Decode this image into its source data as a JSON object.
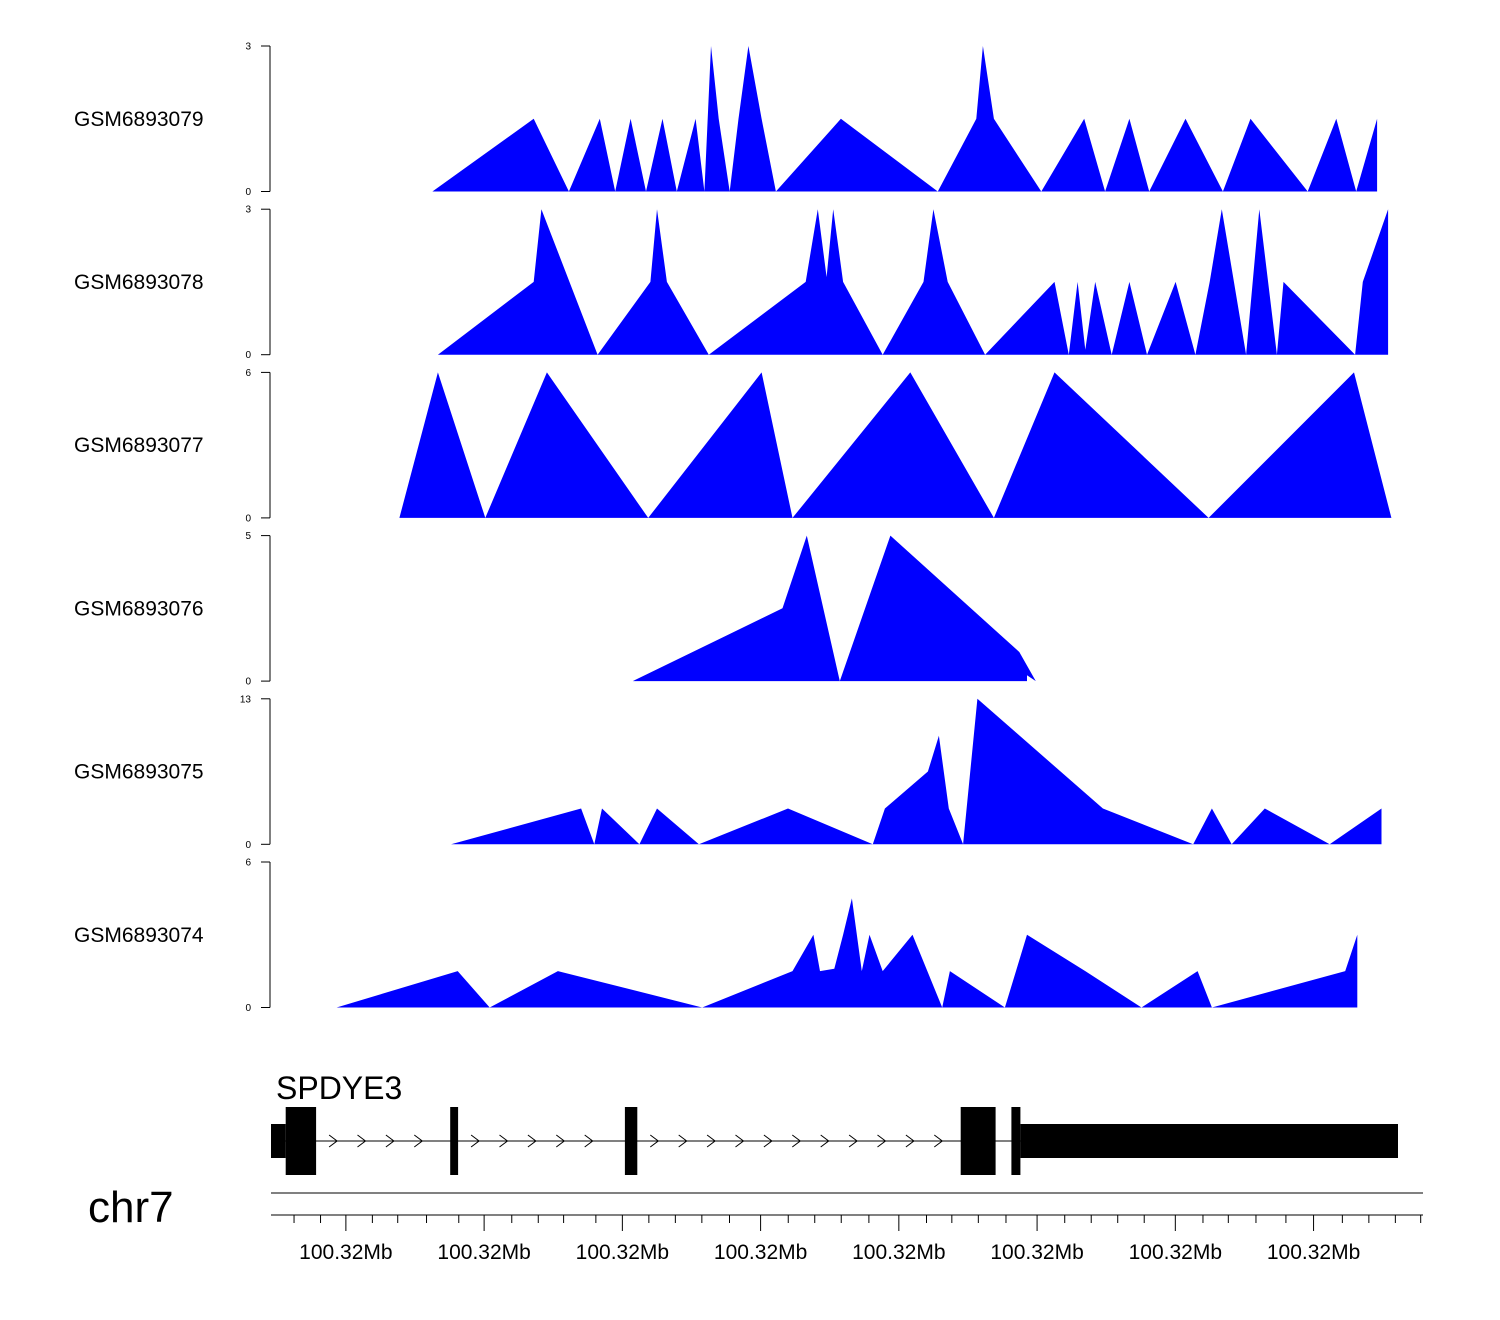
{
  "chart_data": {
    "type": "area",
    "title": "",
    "colors": {
      "fill": "#0000ff",
      "axis": "#000000",
      "gene": "#000000"
    },
    "x_range": [
      0,
      100
    ],
    "tracks": [
      {
        "name": "GSM6893079",
        "ymax": 3,
        "ylim": [
          0,
          3
        ],
        "x": [
          12.3,
          21.5,
          24.7,
          27.5,
          28.9,
          30.3,
          31.7,
          33.2,
          34.5,
          36.2,
          37,
          37.6,
          38.3,
          39.3,
          40.1,
          41,
          42.2,
          43.5,
          49.4,
          58.2,
          61.7,
          62.3,
          63.3,
          67.6,
          71.5,
          73.4,
          75.6,
          77.4,
          80.7,
          84.1,
          86.6,
          91.8,
          94.4,
          96.2,
          98.1
        ],
        "y": [
          0,
          1.5,
          0,
          1.5,
          0,
          1.5,
          0,
          1.5,
          0,
          1.5,
          0,
          3,
          1.5,
          0,
          1.5,
          3,
          1.5,
          0,
          1.5,
          0,
          1.5,
          3,
          1.5,
          0,
          1.5,
          0,
          1.5,
          0,
          1.5,
          0,
          1.5,
          0,
          1.5,
          0,
          1.5
        ]
      },
      {
        "name": "GSM6893078",
        "ymax": 3,
        "ylim": [
          0,
          3
        ],
        "x": [
          12.8,
          21.5,
          22.2,
          27.3,
          32.1,
          32.7,
          33.6,
          37.4,
          46.2,
          47.3,
          48.1,
          48.7,
          49.6,
          53.2,
          56.9,
          57.8,
          59.1,
          62.5,
          68.8,
          70.1,
          70.9,
          71.6,
          72.5,
          74,
          75.6,
          77.2,
          79.8,
          81.6,
          82.9,
          84,
          86.2,
          87.4,
          89,
          89.6,
          96.1,
          96.8,
          99.1
        ],
        "y": [
          0,
          1.5,
          3,
          0,
          1.5,
          3,
          1.5,
          0,
          1.5,
          3,
          1.6,
          3,
          1.5,
          0,
          1.5,
          3,
          1.5,
          0,
          1.5,
          0,
          1.5,
          0.1,
          1.5,
          0,
          1.5,
          0,
          1.5,
          0,
          1.5,
          3,
          0,
          3,
          0,
          1.5,
          0,
          1.5,
          3
        ]
      },
      {
        "name": "GSM6893077",
        "ymax": 6,
        "ylim": [
          0,
          6
        ],
        "x": [
          9.3,
          12.8,
          17.1,
          22.7,
          31.9,
          42.2,
          45,
          55.7,
          63.3,
          68.8,
          82.8,
          96,
          99.4
        ],
        "y": [
          0,
          6,
          0,
          6,
          0,
          6,
          0,
          6,
          0,
          6,
          0,
          6,
          0
        ]
      },
      {
        "name": "GSM6893076",
        "ymax": 5,
        "ylim": [
          0,
          5
        ],
        "x": [
          30.5,
          44.1,
          46.3,
          49.3,
          53.9,
          65.6,
          67.1,
          66.3
        ],
        "y": [
          0,
          2.5,
          5,
          0,
          5,
          1,
          0,
          0.2
        ]
      },
      {
        "name": "GSM6893075",
        "ymax": 13,
        "ylim": [
          0,
          13
        ],
        "x": [
          14,
          25.8,
          27,
          27.7,
          31.1,
          32.7,
          36.5,
          44.6,
          52.3,
          53.4,
          57.3,
          58.3,
          59.2,
          60.5,
          61.8,
          73.2,
          81.4,
          83.1,
          84.9,
          87.9,
          93.8,
          98.5
        ],
        "y": [
          0,
          3.2,
          0,
          3.2,
          0,
          3.2,
          0,
          3.2,
          0,
          3.2,
          6.5,
          9.7,
          3.2,
          0,
          13,
          3.2,
          0,
          3.2,
          0,
          3.2,
          0,
          3.2
        ]
      },
      {
        "name": "GSM6893074",
        "ymax": 6,
        "ylim": [
          0,
          6
        ],
        "x": [
          3.6,
          14.6,
          17.5,
          23.7,
          36.8,
          45,
          46.9,
          47.5,
          48.8,
          49.6,
          50.4,
          51.3,
          52,
          53.2,
          55.9,
          58.6,
          59.3,
          64.3,
          66.3,
          71.6,
          76.7,
          81.8,
          83.1,
          95.2,
          96.3
        ],
        "y": [
          0,
          1.5,
          0,
          1.5,
          0,
          1.5,
          3,
          1.5,
          1.6,
          3,
          4.5,
          1.5,
          3,
          1.5,
          3,
          0,
          1.5,
          0,
          3,
          1.5,
          0,
          1.5,
          0,
          1.5,
          3
        ]
      }
    ],
    "gene": {
      "label": "SPDYE3",
      "start": 0,
      "end": 100,
      "exons": [
        {
          "start": 0,
          "end": 1.3,
          "kind": "utr"
        },
        {
          "start": 1.3,
          "end": 4,
          "kind": "cds"
        },
        {
          "start": 15.9,
          "end": 16.6,
          "kind": "cds"
        },
        {
          "start": 31.4,
          "end": 32.5,
          "kind": "cds"
        },
        {
          "start": 61.2,
          "end": 64.3,
          "kind": "cds"
        },
        {
          "start": 65.7,
          "end": 66.5,
          "kind": "cds"
        },
        {
          "start": 66.5,
          "end": 100,
          "kind": "utr"
        }
      ]
    },
    "x_axis": {
      "chromosome": "chr7",
      "major_ticks": [
        6.5,
        18.5,
        30.5,
        42.5,
        54.5,
        66.5,
        78.5,
        90.5
      ],
      "tick_labels": [
        "100.32Mb",
        "100.32Mb",
        "100.32Mb",
        "100.32Mb",
        "100.32Mb",
        "100.32Mb",
        "100.32Mb",
        "100.32Mb"
      ],
      "minor_ticks": [
        2,
        4.3,
        8.8,
        11,
        13.5,
        16.3,
        20.9,
        23.2,
        25.4,
        28.2,
        32.8,
        35.1,
        37.4,
        39.8,
        44.9,
        47.2,
        49.5,
        51.9,
        56.9,
        59.1,
        61.4,
        63.8,
        68.9,
        71.2,
        73.5,
        75.8,
        80.9,
        83.1,
        85.5,
        88.1,
        93,
        95.3,
        97.6,
        99.8
      ]
    }
  }
}
